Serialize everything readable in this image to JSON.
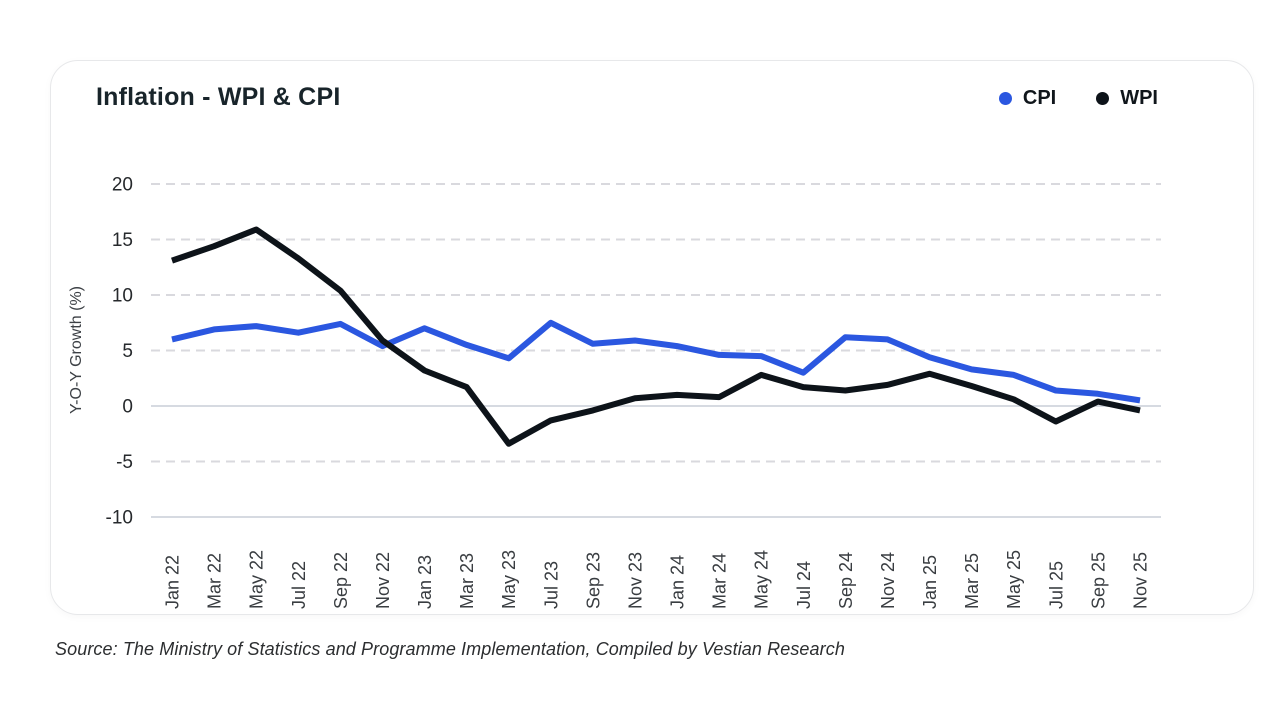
{
  "card": {
    "title": "Inflation - WPI & CPI",
    "source": "Source: The Ministry of Statistics and Programme Implementation, Compiled by Vestian Research"
  },
  "legend": {
    "items": [
      {
        "label": "CPI",
        "color": "#2b57e0"
      },
      {
        "label": "WPI",
        "color": "#0d1319"
      }
    ]
  },
  "chart_data": {
    "type": "line",
    "title": "Inflation - WPI & CPI",
    "xlabel": "",
    "ylabel": "Y-O-Y Growth (%)",
    "ylim": [
      -10,
      20
    ],
    "yticks": [
      20,
      15,
      10,
      5,
      0,
      -5,
      -10
    ],
    "grid": "horizontal dashed gridlines; solid lines at 0 and -10",
    "legend_position": "top-right",
    "categories": [
      "Jan 22",
      "Mar 22",
      "May 22",
      "Jul 22",
      "Sep 22",
      "Nov 22",
      "Jan 23",
      "Mar 23",
      "May 23",
      "Jul 23",
      "Sep 23",
      "Nov 23",
      "Jan 24",
      "Mar 24",
      "May 24",
      "Jul 24",
      "Sep 24",
      "Nov 24",
      "Jan 25",
      "Mar 25",
      "May 25",
      "Jul 25",
      "Sep 25",
      "Nov 25"
    ],
    "series": [
      {
        "name": "CPI",
        "color": "#2b57e0",
        "values": [
          6.0,
          6.9,
          7.2,
          6.6,
          7.4,
          5.4,
          7.0,
          5.5,
          4.3,
          7.5,
          5.6,
          5.9,
          5.4,
          4.6,
          4.5,
          3.0,
          6.2,
          6.0,
          4.4,
          3.3,
          2.8,
          1.4,
          1.1,
          0.5
        ]
      },
      {
        "name": "WPI",
        "color": "#0d1319",
        "values": [
          13.1,
          14.4,
          15.9,
          13.3,
          10.4,
          5.9,
          3.2,
          1.7,
          -3.4,
          -1.3,
          -0.4,
          0.7,
          1.0,
          0.8,
          2.8,
          1.7,
          1.4,
          1.9,
          2.9,
          1.8,
          0.6,
          -1.4,
          0.4,
          -0.4
        ]
      }
    ]
  }
}
